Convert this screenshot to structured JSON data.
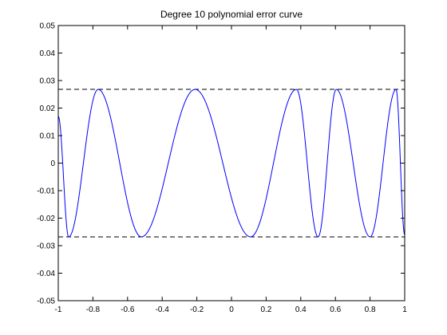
{
  "chart_data": {
    "type": "line",
    "title": "Degree 10 polynomial error curve",
    "xlabel": "",
    "ylabel": "",
    "xlim": [
      -1,
      1
    ],
    "ylim": [
      -0.05,
      0.05
    ],
    "x_ticks": [
      -1,
      -0.8,
      -0.6,
      -0.4,
      -0.2,
      0,
      0.2,
      0.4,
      0.6,
      0.8,
      1
    ],
    "x_tick_labels": [
      "-1",
      "-0.8",
      "-0.6",
      "-0.4",
      "-0.2",
      "0",
      "0.2",
      "0.4",
      "0.6",
      "0.8",
      "1"
    ],
    "y_ticks": [
      -0.05,
      -0.04,
      -0.03,
      -0.02,
      -0.01,
      0,
      0.01,
      0.02,
      0.03,
      0.04,
      0.05
    ],
    "y_tick_labels": [
      "-0.05",
      "-0.04",
      "-0.03",
      "-0.02",
      "-0.01",
      "0",
      "0.01",
      "0.02",
      "0.03",
      "0.04",
      "0.05"
    ],
    "grid": false,
    "series": [
      {
        "color": "#0000ff",
        "style": "solid",
        "extrema": [
          {
            "x": -1.0,
            "y": 0.017
          },
          {
            "x": -0.94,
            "y": -0.0268
          },
          {
            "x": -0.77,
            "y": 0.0268
          },
          {
            "x": -0.52,
            "y": -0.0268
          },
          {
            "x": -0.21,
            "y": 0.0268
          },
          {
            "x": 0.11,
            "y": -0.0268
          },
          {
            "x": 0.375,
            "y": 0.0268
          },
          {
            "x": 0.5,
            "y": -0.0268
          },
          {
            "x": 0.605,
            "y": 0.0268
          },
          {
            "x": 0.8,
            "y": -0.0268
          },
          {
            "x": 0.95,
            "y": 0.0268
          },
          {
            "x": 1.0,
            "y": -0.026
          }
        ]
      }
    ],
    "reference_lines": [
      {
        "y": 0.0268,
        "color": "#000000",
        "style": "dashed"
      },
      {
        "y": -0.0268,
        "color": "#000000",
        "style": "dashed"
      }
    ]
  }
}
